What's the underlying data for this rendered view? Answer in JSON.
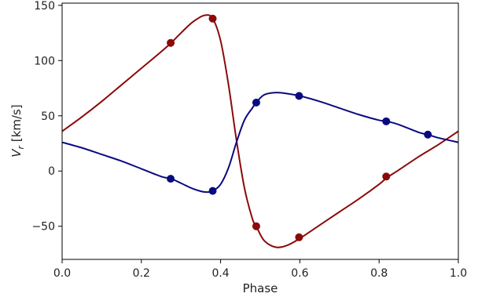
{
  "chart_data": {
    "type": "line",
    "title": "",
    "xlabel": "Phase",
    "ylabel_main": "V",
    "ylabel_sub": "r",
    "ylabel_unit": " [km/s]",
    "xlim": [
      0.0,
      1.0
    ],
    "ylim": [
      -80,
      152
    ],
    "x_ticks": [
      0.0,
      0.2,
      0.4,
      0.6,
      0.8,
      1.0
    ],
    "x_tick_labels": [
      "0.0",
      "0.2",
      "0.4",
      "0.6",
      "0.8",
      "1.0"
    ],
    "y_ticks": [
      -50,
      0,
      50,
      100,
      150
    ],
    "y_tick_labels": [
      "−50",
      "0",
      "50",
      "100",
      "150"
    ],
    "grid": false,
    "series": [
      {
        "color": "#8b0a0a",
        "curve": {
          "x": [
            0.0,
            0.05,
            0.1,
            0.15,
            0.2,
            0.25,
            0.275,
            0.3,
            0.33,
            0.36,
            0.38,
            0.4,
            0.42,
            0.44,
            0.46,
            0.48,
            0.49,
            0.51,
            0.54,
            0.57,
            0.6,
            0.65,
            0.7,
            0.75,
            0.8,
            0.82,
            0.85,
            0.9,
            0.95,
            1.0
          ],
          "y": [
            36,
            49,
            63,
            78,
            93,
            108,
            116,
            125,
            135,
            141,
            138,
            118,
            78,
            28,
            -15,
            -43,
            -50,
            -63,
            -69,
            -67,
            -61,
            -49,
            -37,
            -25,
            -12,
            -6,
            1,
            13,
            24,
            36
          ]
        },
        "points": {
          "x": [
            0.274,
            0.38,
            0.49,
            0.598,
            0.818
          ],
          "y": [
            116,
            138,
            -50,
            -60,
            -5
          ]
        }
      },
      {
        "color": "#0a0a80",
        "curve": {
          "x": [
            0.0,
            0.05,
            0.1,
            0.15,
            0.2,
            0.25,
            0.275,
            0.3,
            0.33,
            0.36,
            0.38,
            0.4,
            0.42,
            0.44,
            0.46,
            0.48,
            0.49,
            0.51,
            0.54,
            0.57,
            0.6,
            0.65,
            0.7,
            0.75,
            0.8,
            0.82,
            0.85,
            0.9,
            0.923,
            0.95,
            1.0
          ],
          "y": [
            26,
            21,
            15,
            9,
            2,
            -5,
            -7,
            -11,
            -16,
            -19,
            -18,
            -12,
            3,
            26,
            46,
            57,
            62,
            69,
            71,
            70,
            68,
            63,
            57,
            51,
            46,
            45,
            42,
            35,
            33,
            30,
            26
          ]
        },
        "points": {
          "x": [
            0.274,
            0.38,
            0.49,
            0.598,
            0.818,
            0.923
          ],
          "y": [
            -7,
            -18,
            62,
            68,
            45,
            33
          ]
        }
      }
    ]
  }
}
